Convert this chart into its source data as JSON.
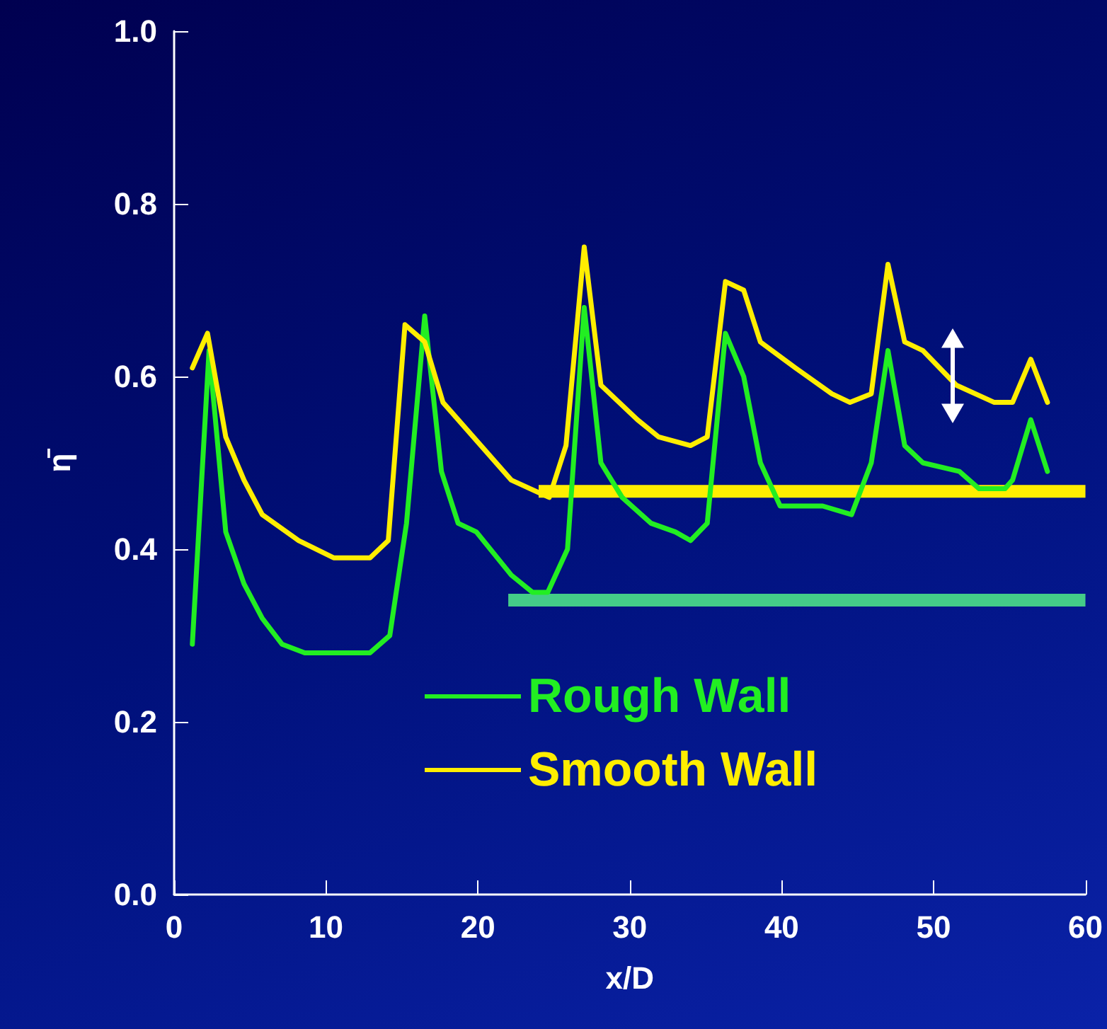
{
  "chart_data": {
    "type": "line",
    "xlabel": "x/D",
    "ylabel": "η̄",
    "xlim": [
      0,
      60
    ],
    "xticks": [
      0,
      10,
      20,
      30,
      40,
      50,
      60
    ],
    "ylim": [
      0,
      1.0
    ],
    "yticks": [
      {
        "value": 0,
        "label": "0.0"
      },
      {
        "value": 0.2,
        "label": "0.2"
      },
      {
        "value": 0.4,
        "label": "0.4"
      },
      {
        "value": 0.6,
        "label": "0.6"
      },
      {
        "value": 0.8,
        "label": "0.8"
      },
      {
        "value": 1.0,
        "label": "1.0"
      }
    ],
    "grid": false,
    "legend": "bottom",
    "marker": "none",
    "line_style": "solid",
    "series": [
      {
        "name": "Rough Wall",
        "color": "#22ee22",
        "x": [
          1.2,
          2.3,
          3.4,
          4.6,
          5.8,
          7.1,
          8.6,
          10.6,
          12.9,
          14.2,
          15.3,
          16.5,
          17.6,
          18.7,
          19.9,
          22.2,
          23.6,
          24.6,
          25.9,
          27.0,
          28.1,
          29.5,
          31.4,
          33.0,
          34.0,
          35.1,
          36.3,
          37.5,
          38.6,
          39.9,
          40.9,
          42.7,
          44.6,
          45.9,
          47.0,
          48.1,
          49.3,
          51.7,
          53.0,
          54.7,
          55.2,
          56.4,
          57.5
        ],
        "values": [
          0.29,
          0.63,
          0.42,
          0.36,
          0.32,
          0.29,
          0.28,
          0.28,
          0.28,
          0.3,
          0.43,
          0.67,
          0.49,
          0.43,
          0.42,
          0.37,
          0.35,
          0.35,
          0.4,
          0.68,
          0.5,
          0.46,
          0.43,
          0.42,
          0.41,
          0.43,
          0.65,
          0.6,
          0.5,
          0.45,
          0.45,
          0.45,
          0.44,
          0.5,
          0.63,
          0.52,
          0.5,
          0.49,
          0.47,
          0.47,
          0.48,
          0.55,
          0.49
        ]
      },
      {
        "name": "Smooth Wall",
        "color": "#ffee00",
        "x": [
          1.2,
          2.2,
          3.4,
          4.6,
          5.8,
          8.2,
          10.5,
          12.9,
          14.1,
          15.2,
          16.5,
          17.7,
          20.2,
          22.2,
          24.7,
          25.8,
          27.0,
          28.1,
          30.5,
          31.9,
          34.0,
          35.1,
          36.3,
          37.5,
          38.6,
          40.9,
          43.3,
          44.5,
          45.9,
          47.0,
          48.1,
          49.3,
          51.5,
          54.0,
          55.2,
          56.4,
          57.5
        ],
        "values": [
          0.61,
          0.65,
          0.53,
          0.48,
          0.44,
          0.41,
          0.39,
          0.39,
          0.41,
          0.66,
          0.64,
          0.57,
          0.52,
          0.48,
          0.46,
          0.52,
          0.75,
          0.59,
          0.55,
          0.53,
          0.52,
          0.53,
          0.71,
          0.7,
          0.64,
          0.61,
          0.58,
          0.57,
          0.58,
          0.73,
          0.64,
          0.63,
          0.59,
          0.57,
          0.57,
          0.62,
          0.57
        ]
      },
      {
        "color": "#ffee00",
        "x": [
          24,
          60
        ],
        "values": [
          0.467,
          0.467
        ]
      },
      {
        "color": "#44cc88",
        "x": [
          22,
          60
        ],
        "values": [
          0.341,
          0.341
        ]
      }
    ]
  }
}
